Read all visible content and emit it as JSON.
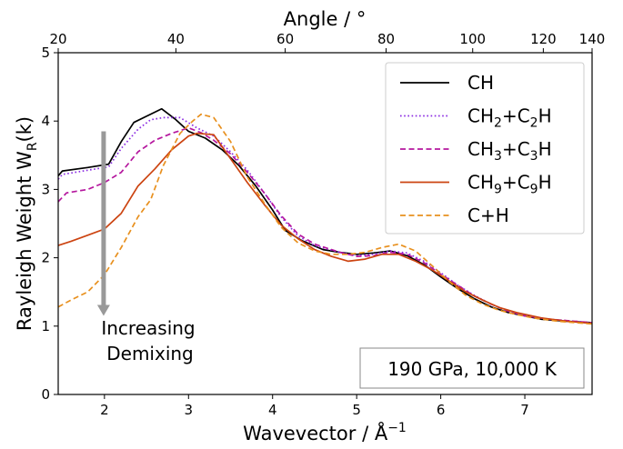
{
  "chart_data": {
    "type": "line",
    "xlabel": "Wavevector / Å",
    "xlabel_sup": "−1",
    "ylabel": "Rayleigh Weight W",
    "ylabel_sub": "R",
    "ylabel_arg": "(k)",
    "top_xlabel": "Angle / °",
    "xlim": [
      1.45,
      7.8
    ],
    "ylim": [
      0,
      5
    ],
    "xticks": [
      2,
      3,
      4,
      5,
      6,
      7
    ],
    "yticks": [
      0,
      1,
      2,
      3,
      4,
      5
    ],
    "top_ticks": [
      {
        "angle": 20,
        "k": 1.45
      },
      {
        "angle": 40,
        "k": 2.85
      },
      {
        "angle": 60,
        "k": 4.15
      },
      {
        "angle": 80,
        "k": 5.35
      },
      {
        "angle": 100,
        "k": 6.38
      },
      {
        "angle": 120,
        "k": 7.22
      },
      {
        "angle": 140,
        "k": 7.8
      }
    ],
    "legend_position": "top-right",
    "grid": false,
    "series": [
      {
        "name": "CH",
        "color": "#000000",
        "dash": "solid",
        "points": [
          [
            1.45,
            3.2
          ],
          [
            1.5,
            3.27
          ],
          [
            1.8,
            3.32
          ],
          [
            2.05,
            3.37
          ],
          [
            2.2,
            3.7
          ],
          [
            2.35,
            3.98
          ],
          [
            2.5,
            4.07
          ],
          [
            2.68,
            4.18
          ],
          [
            2.85,
            4.02
          ],
          [
            3.0,
            3.85
          ],
          [
            3.2,
            3.75
          ],
          [
            3.4,
            3.58
          ],
          [
            3.6,
            3.35
          ],
          [
            3.8,
            3.05
          ],
          [
            4.0,
            2.7
          ],
          [
            4.15,
            2.4
          ],
          [
            4.35,
            2.25
          ],
          [
            4.6,
            2.12
          ],
          [
            4.8,
            2.08
          ],
          [
            5.0,
            2.05
          ],
          [
            5.2,
            2.07
          ],
          [
            5.4,
            2.1
          ],
          [
            5.6,
            2.03
          ],
          [
            5.8,
            1.9
          ],
          [
            6.0,
            1.72
          ],
          [
            6.2,
            1.55
          ],
          [
            6.4,
            1.4
          ],
          [
            6.6,
            1.28
          ],
          [
            6.8,
            1.2
          ],
          [
            7.0,
            1.15
          ],
          [
            7.2,
            1.1
          ],
          [
            7.5,
            1.07
          ],
          [
            7.8,
            1.05
          ]
        ]
      },
      {
        "name": "CH",
        "name_sub1": "2",
        "name_mid": "+C",
        "name_sub2": "2",
        "name_end": "H",
        "color": "#8a2be2",
        "dash": "dotted",
        "points": [
          [
            1.45,
            3.15
          ],
          [
            1.5,
            3.22
          ],
          [
            1.8,
            3.28
          ],
          [
            2.05,
            3.33
          ],
          [
            2.2,
            3.6
          ],
          [
            2.4,
            3.88
          ],
          [
            2.55,
            4.02
          ],
          [
            2.7,
            4.05
          ],
          [
            2.9,
            4.05
          ],
          [
            3.1,
            3.9
          ],
          [
            3.3,
            3.78
          ],
          [
            3.5,
            3.55
          ],
          [
            3.7,
            3.28
          ],
          [
            3.9,
            2.95
          ],
          [
            4.1,
            2.6
          ],
          [
            4.3,
            2.32
          ],
          [
            4.5,
            2.18
          ],
          [
            4.8,
            2.08
          ],
          [
            5.0,
            2.03
          ],
          [
            5.2,
            2.05
          ],
          [
            5.4,
            2.1
          ],
          [
            5.6,
            2.07
          ],
          [
            5.8,
            1.95
          ],
          [
            6.0,
            1.78
          ],
          [
            6.2,
            1.6
          ],
          [
            6.4,
            1.45
          ],
          [
            6.6,
            1.32
          ],
          [
            6.8,
            1.22
          ],
          [
            7.0,
            1.15
          ],
          [
            7.3,
            1.1
          ],
          [
            7.8,
            1.05
          ]
        ]
      },
      {
        "name": "CH",
        "name_sub1": "3",
        "name_mid": "+C",
        "name_sub2": "3",
        "name_end": "H",
        "color": "#b5179e",
        "dash": "dashed",
        "points": [
          [
            1.45,
            2.82
          ],
          [
            1.55,
            2.95
          ],
          [
            1.8,
            3.0
          ],
          [
            2.0,
            3.1
          ],
          [
            2.2,
            3.25
          ],
          [
            2.4,
            3.55
          ],
          [
            2.6,
            3.72
          ],
          [
            2.8,
            3.82
          ],
          [
            3.0,
            3.9
          ],
          [
            3.15,
            3.83
          ],
          [
            3.3,
            3.72
          ],
          [
            3.5,
            3.52
          ],
          [
            3.7,
            3.25
          ],
          [
            3.9,
            2.95
          ],
          [
            4.1,
            2.62
          ],
          [
            4.3,
            2.35
          ],
          [
            4.5,
            2.2
          ],
          [
            4.8,
            2.08
          ],
          [
            5.0,
            2.02
          ],
          [
            5.2,
            2.03
          ],
          [
            5.4,
            2.08
          ],
          [
            5.6,
            2.05
          ],
          [
            5.8,
            1.93
          ],
          [
            6.0,
            1.76
          ],
          [
            6.2,
            1.6
          ],
          [
            6.4,
            1.44
          ],
          [
            6.6,
            1.32
          ],
          [
            6.8,
            1.22
          ],
          [
            7.0,
            1.15
          ],
          [
            7.3,
            1.1
          ],
          [
            7.8,
            1.05
          ]
        ]
      },
      {
        "name": "CH",
        "name_sub1": "9",
        "name_mid": "+C",
        "name_sub2": "9",
        "name_end": "H",
        "color": "#cc4411",
        "dash": "solid",
        "points": [
          [
            1.45,
            2.18
          ],
          [
            1.6,
            2.24
          ],
          [
            1.8,
            2.33
          ],
          [
            2.0,
            2.42
          ],
          [
            2.2,
            2.65
          ],
          [
            2.4,
            3.05
          ],
          [
            2.6,
            3.3
          ],
          [
            2.8,
            3.58
          ],
          [
            3.0,
            3.78
          ],
          [
            3.1,
            3.82
          ],
          [
            3.3,
            3.8
          ],
          [
            3.5,
            3.45
          ],
          [
            3.7,
            3.1
          ],
          [
            3.9,
            2.78
          ],
          [
            4.1,
            2.48
          ],
          [
            4.3,
            2.28
          ],
          [
            4.5,
            2.12
          ],
          [
            4.7,
            2.02
          ],
          [
            4.9,
            1.95
          ],
          [
            5.1,
            1.98
          ],
          [
            5.3,
            2.05
          ],
          [
            5.5,
            2.05
          ],
          [
            5.7,
            1.95
          ],
          [
            5.9,
            1.82
          ],
          [
            6.1,
            1.66
          ],
          [
            6.3,
            1.5
          ],
          [
            6.5,
            1.38
          ],
          [
            6.7,
            1.27
          ],
          [
            6.9,
            1.2
          ],
          [
            7.2,
            1.12
          ],
          [
            7.5,
            1.07
          ],
          [
            7.8,
            1.04
          ]
        ]
      },
      {
        "name": "C+H",
        "color": "#e8901e",
        "dash": "dashed",
        "points": [
          [
            1.45,
            1.28
          ],
          [
            1.6,
            1.38
          ],
          [
            1.8,
            1.5
          ],
          [
            2.0,
            1.75
          ],
          [
            2.2,
            2.15
          ],
          [
            2.4,
            2.6
          ],
          [
            2.55,
            2.85
          ],
          [
            2.7,
            3.35
          ],
          [
            2.9,
            3.82
          ],
          [
            3.05,
            4.0
          ],
          [
            3.15,
            4.1
          ],
          [
            3.3,
            4.05
          ],
          [
            3.5,
            3.7
          ],
          [
            3.7,
            3.18
          ],
          [
            3.9,
            2.8
          ],
          [
            4.1,
            2.45
          ],
          [
            4.3,
            2.22
          ],
          [
            4.5,
            2.1
          ],
          [
            4.7,
            2.05
          ],
          [
            4.9,
            2.05
          ],
          [
            5.1,
            2.08
          ],
          [
            5.3,
            2.15
          ],
          [
            5.5,
            2.2
          ],
          [
            5.7,
            2.1
          ],
          [
            5.9,
            1.88
          ],
          [
            6.1,
            1.65
          ],
          [
            6.3,
            1.45
          ],
          [
            6.5,
            1.32
          ],
          [
            6.7,
            1.23
          ],
          [
            6.9,
            1.17
          ],
          [
            7.1,
            1.12
          ],
          [
            7.4,
            1.07
          ],
          [
            7.8,
            1.03
          ]
        ]
      }
    ]
  },
  "annotation": {
    "line1": "Increasing",
    "line2": "Demixing",
    "arrow_from_y": 3.85,
    "arrow_to_y": 1.15,
    "arrow_x": 1.99,
    "arrow_color": "#999999"
  },
  "condition_box": {
    "text": "190 GPa, 10,000 K"
  }
}
